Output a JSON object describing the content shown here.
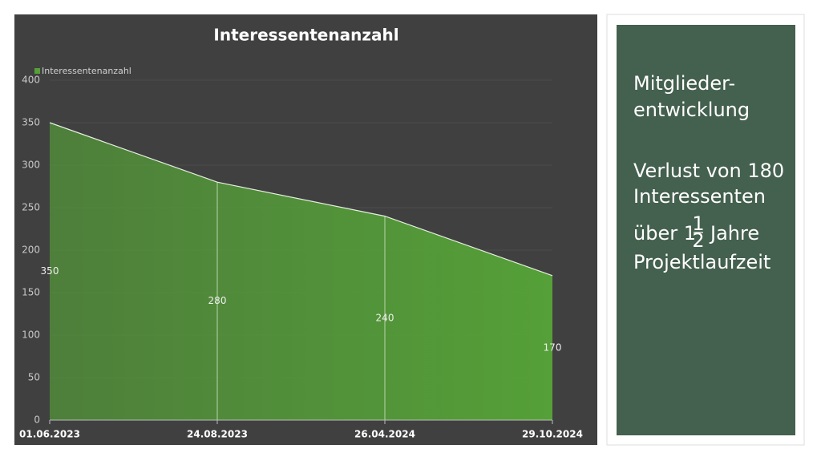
{
  "chart_data": {
    "type": "area",
    "title": "Interessentenanzahl",
    "categories": [
      "01.06.2023",
      "24.08.2023",
      "26.04.2024",
      "29.10.2024"
    ],
    "series": [
      {
        "name": "Interessentenanzahl",
        "color": "#55a038",
        "values": [
          350,
          280,
          240,
          170
        ]
      }
    ],
    "ylim": [
      0,
      400
    ],
    "yticks": [
      0,
      50,
      100,
      150,
      200,
      250,
      300,
      350,
      400
    ],
    "grid": true,
    "legend": "top-left"
  },
  "panel": {
    "heading": [
      "Mitglieder-",
      "entwicklung"
    ],
    "body": [
      "Verlust von 180",
      "Interessenten"
    ],
    "fraction_line": {
      "prefix": "über 1",
      "numerator": "1",
      "denominator": "2",
      "suffix": "Jahre"
    },
    "last": "Projektlaufzeit"
  }
}
